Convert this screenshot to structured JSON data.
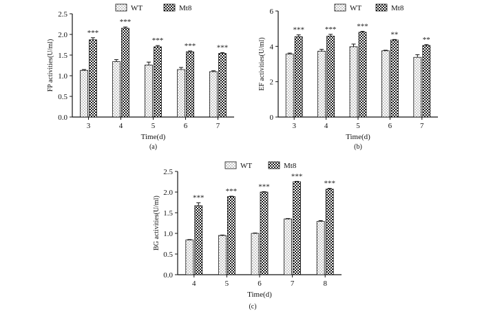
{
  "colors": {
    "ink": "#111111",
    "wt_fill": "dots",
    "mt8_fill": "checker"
  },
  "chart_data": [
    {
      "type": "bar",
      "panel_label": "(a)",
      "ylabel": "FP activities(U/ml)",
      "xlabel": "Time(d)",
      "categories": [
        "3",
        "4",
        "5",
        "6",
        "7"
      ],
      "ylim": [
        0,
        2.5
      ],
      "yticks": [
        "0.0",
        "0.5",
        "1.0",
        "1.5",
        "2.0",
        "2.5"
      ],
      "legend": "top",
      "series": [
        {
          "name": "WT",
          "values": [
            1.13,
            1.34,
            1.26,
            1.15,
            1.1
          ],
          "errors": [
            0.02,
            0.05,
            0.07,
            0.05,
            0.02
          ]
        },
        {
          "name": "Mt8",
          "values": [
            1.87,
            2.15,
            1.7,
            1.58,
            1.54
          ],
          "errors": [
            0.05,
            0.03,
            0.03,
            0.02,
            0.02
          ]
        }
      ],
      "significance": [
        "***",
        "***",
        "***",
        "***",
        "***"
      ]
    },
    {
      "type": "bar",
      "panel_label": "(b)",
      "ylabel": "EF activities(U/ml)",
      "xlabel": "Time(d)",
      "categories": [
        "3",
        "4",
        "5",
        "6",
        "7"
      ],
      "ylim": [
        0,
        6
      ],
      "yticks": [
        "0",
        "2",
        "4",
        "6"
      ],
      "legend": "top",
      "series": [
        {
          "name": "WT",
          "values": [
            3.57,
            3.73,
            3.98,
            3.75,
            3.38
          ],
          "errors": [
            0.05,
            0.1,
            0.15,
            0.03,
            0.15
          ]
        },
        {
          "name": "Mt8",
          "values": [
            4.55,
            4.58,
            4.8,
            4.36,
            4.05
          ],
          "errors": [
            0.1,
            0.1,
            0.05,
            0.03,
            0.05
          ]
        }
      ],
      "significance": [
        "***",
        "***",
        "***",
        "**",
        "**"
      ]
    },
    {
      "type": "bar",
      "panel_label": "(c)",
      "ylabel": "BG activities(U/ml)",
      "xlabel": "Time(d)",
      "categories": [
        "4",
        "5",
        "6",
        "7",
        "8"
      ],
      "ylim": [
        0,
        2.5
      ],
      "yticks": [
        "0.0",
        "0.5",
        "1.0",
        "1.5",
        "2.0",
        "2.5"
      ],
      "legend": "top",
      "series": [
        {
          "name": "WT",
          "values": [
            0.84,
            0.95,
            1.0,
            1.35,
            1.29
          ],
          "errors": [
            0.01,
            0.01,
            0.01,
            0.01,
            0.02
          ]
        },
        {
          "name": "Mt8",
          "values": [
            1.67,
            1.89,
            2.0,
            2.25,
            2.07
          ],
          "errors": [
            0.07,
            0.01,
            0.01,
            0.01,
            0.02
          ]
        }
      ],
      "significance": [
        "***",
        "***",
        "***",
        "***",
        "***"
      ]
    }
  ]
}
